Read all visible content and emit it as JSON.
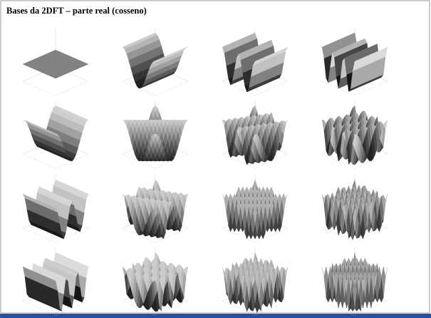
{
  "header": {
    "title": "Bases da 2DFT – parte real (cosseno)"
  }
}
